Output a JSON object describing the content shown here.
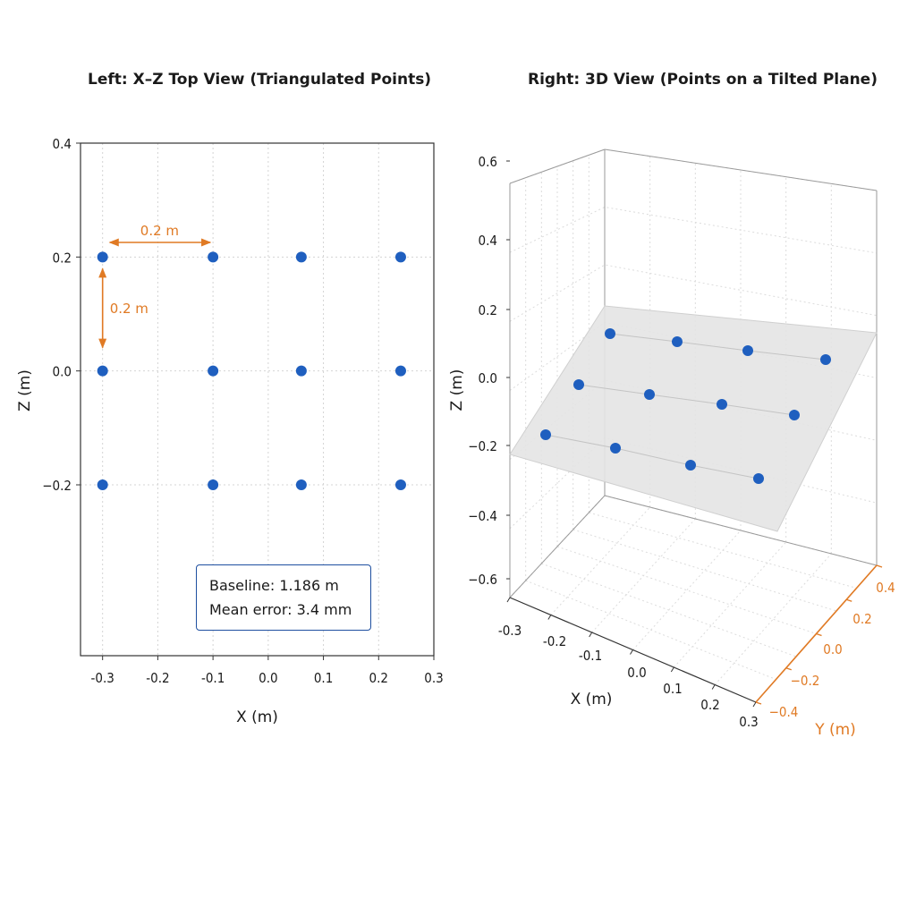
{
  "chart_data": [
    {
      "type": "scatter",
      "title": "Left: X–Z Top View (Triangulated Points)",
      "xlabel": "X (m)",
      "ylabel": "Z (m)",
      "xlim": [
        -0.34,
        0.3
      ],
      "ylim": [
        -0.5,
        0.4
      ],
      "xticks": [
        -0.3,
        -0.2,
        -0.1,
        0.0,
        0.1,
        0.2,
        0.3
      ],
      "xtick_labels": [
        "-0.3",
        "-0.2",
        "-0.1",
        "0.0",
        "0.1",
        "0.2",
        "0.3"
      ],
      "yticks": [
        0.4,
        0.2,
        0.0,
        -0.2
      ],
      "ytick_labels": [
        "0.4",
        "0.2",
        "0.0",
        "−0.2"
      ],
      "grid": true,
      "marker_color": "#1f5fbf",
      "points": [
        {
          "x": -0.3,
          "z": 0.2
        },
        {
          "x": -0.1,
          "z": 0.2
        },
        {
          "x": 0.06,
          "z": 0.2
        },
        {
          "x": 0.24,
          "z": 0.2
        },
        {
          "x": -0.3,
          "z": 0.0
        },
        {
          "x": -0.1,
          "z": 0.0
        },
        {
          "x": 0.06,
          "z": 0.0
        },
        {
          "x": 0.24,
          "z": 0.0
        },
        {
          "x": -0.3,
          "z": -0.2
        },
        {
          "x": -0.1,
          "z": -0.2
        },
        {
          "x": 0.06,
          "z": -0.2
        },
        {
          "x": 0.24,
          "z": -0.2
        }
      ],
      "annotations": [
        {
          "text": "0.2 m",
          "direction": "horizontal",
          "color": "#e07a24"
        },
        {
          "text": "0.2 m",
          "direction": "vertical",
          "color": "#e07a24"
        }
      ],
      "info_box": {
        "baseline_label": "Baseline:",
        "baseline_value": "1.186 m",
        "error_label": "Mean error:",
        "error_value": "3.4 mm"
      }
    },
    {
      "type": "scatter",
      "title": "Right: 3D View (Points on a Tilted Plane)",
      "xlabel": "X (m)",
      "ylabel": "Y (m)",
      "zlabel": "Z (m)",
      "xlim": [
        -0.3,
        0.3
      ],
      "ylim": [
        -0.4,
        0.4
      ],
      "zlim": [
        -0.6,
        0.6
      ],
      "xtick_labels": [
        "-0.3",
        "-0.2",
        "-0.1",
        "0.0",
        "0.1",
        "0.2",
        "0.3"
      ],
      "ytick_labels": [
        "0.4",
        "0.2",
        "0.0",
        "−0.2",
        "−0.4"
      ],
      "ztick_labels": [
        "0.6",
        "0.4",
        "0.2",
        "0.0",
        "−0.2",
        "−0.4",
        "−0.6"
      ],
      "y_axis_color": "#e07a24",
      "plane_color": "#e4e4e4",
      "marker_color": "#1f5fbf",
      "grid": true,
      "points": [
        {
          "row": 0,
          "col": 0
        },
        {
          "row": 0,
          "col": 1
        },
        {
          "row": 0,
          "col": 2
        },
        {
          "row": 0,
          "col": 3
        },
        {
          "row": 1,
          "col": 0
        },
        {
          "row": 1,
          "col": 1
        },
        {
          "row": 1,
          "col": 2
        },
        {
          "row": 1,
          "col": 3
        },
        {
          "row": 2,
          "col": 0
        },
        {
          "row": 2,
          "col": 1
        },
        {
          "row": 2,
          "col": 2
        },
        {
          "row": 2,
          "col": 3
        }
      ]
    }
  ]
}
